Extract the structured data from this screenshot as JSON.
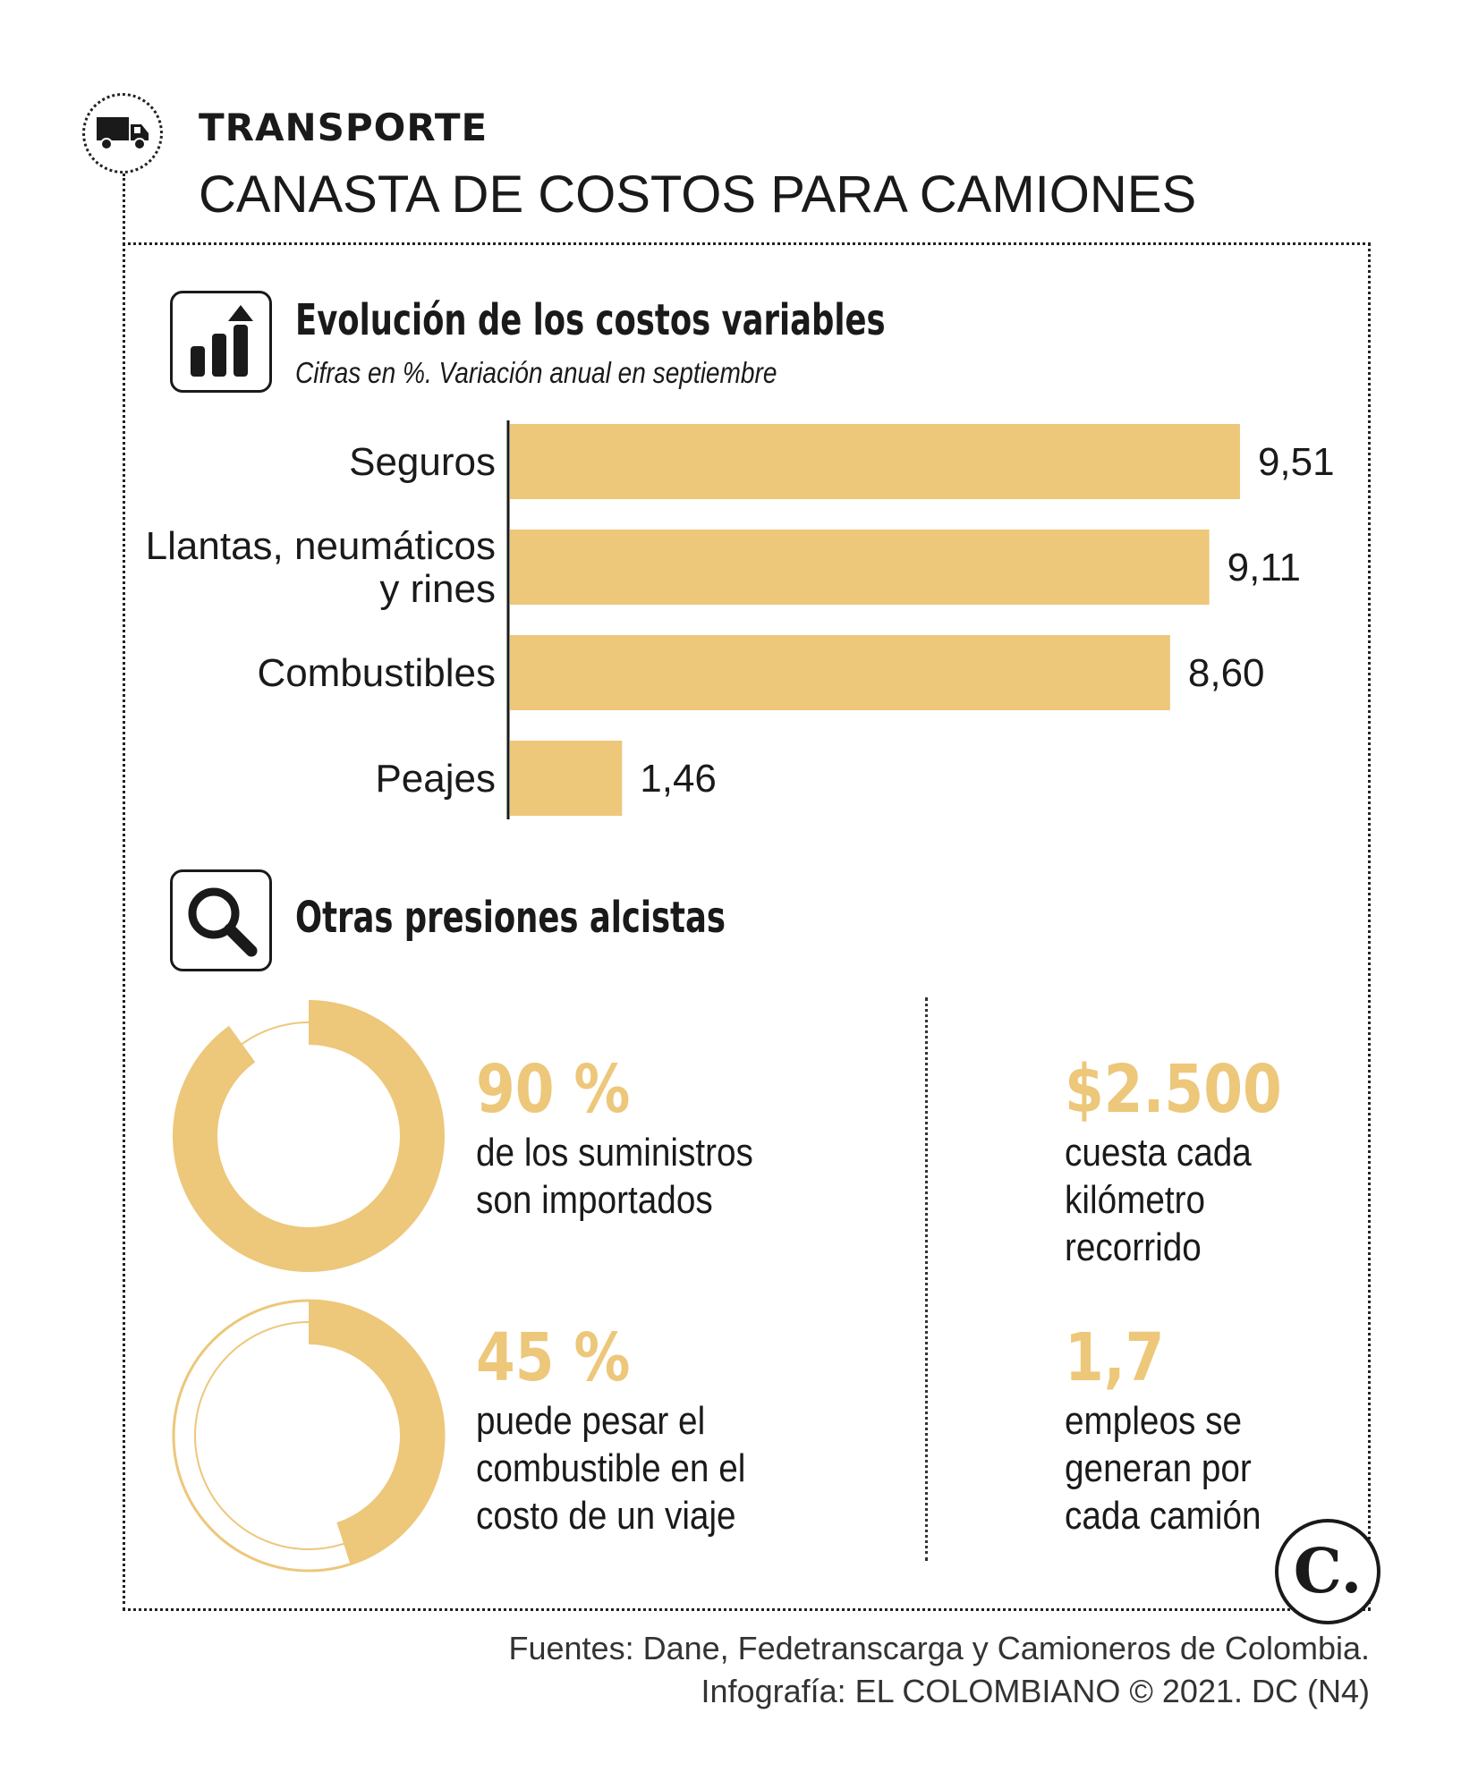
{
  "header": {
    "kicker": "TRANSPORTE",
    "title": "CANASTA DE COSTOS PARA CAMIONES"
  },
  "section1": {
    "title": "Evolución de los costos variables",
    "subtitle": "Cifras en %. Variación anual en septiembre"
  },
  "chart_data": {
    "type": "bar",
    "orientation": "horizontal",
    "title": "Evolución de los costos variables",
    "subtitle": "Cifras en %. Variación anual en septiembre",
    "categories": [
      [
        "Seguros"
      ],
      [
        "Llantas, neumáticos",
        "y rines"
      ],
      [
        "Combustibles"
      ],
      [
        "Peajes"
      ]
    ],
    "values": [
      9.51,
      9.11,
      8.6,
      1.46
    ],
    "value_labels": [
      "9,51",
      "9,11",
      "8,60",
      "1,46"
    ],
    "xlim": [
      0,
      10
    ],
    "bar_color": "#edc77a",
    "grid": false
  },
  "section2": {
    "title": "Otras presiones alcistas"
  },
  "stats": {
    "imported": {
      "value": "90 %",
      "percent": 90,
      "line1": "de los suministros",
      "line2": "son importados"
    },
    "fuel": {
      "value": "45 %",
      "percent": 45,
      "line1": "puede pesar el",
      "line2": "combustible en el",
      "line3": "costo de un viaje"
    },
    "km": {
      "value": "$2.500",
      "line1": "cuesta cada",
      "line2": "kilómetro",
      "line3": "recorrido"
    },
    "jobs": {
      "value": "1,7",
      "line1": "empleos se",
      "line2": "generan por",
      "line3": "cada camión"
    }
  },
  "logo": {
    "letter": "C."
  },
  "footer": {
    "sources": "Fuentes: Dane, Fedetranscarga y Camioneros de Colombia.",
    "credit": "Infografía: EL COLOMBIANO © 2021. DC (N4)"
  },
  "colors": {
    "accent": "#edc77a",
    "ink": "#1a1a1a"
  },
  "icons": {
    "header": "truck-icon",
    "chart": "bar-chart-up-icon",
    "search": "magnifier-icon"
  }
}
